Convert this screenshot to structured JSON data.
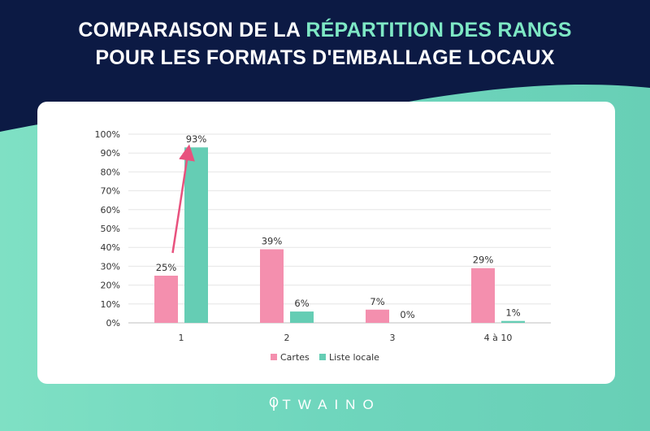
{
  "header": {
    "title_line1_pre": "COMPARAISON DE LA ",
    "title_line1_highlight": "RÉPARTITION DES RANGS",
    "title_line2": "POUR LES FORMATS D'EMBALLAGE LOCAUX"
  },
  "colors": {
    "header_bg": "#0c1a44",
    "highlight": "#7ee8c5",
    "cartes": "#f48fae",
    "liste_locale": "#65cdb4",
    "arrow": "#e8527e"
  },
  "chart_data": {
    "type": "bar",
    "categories": [
      "1",
      "2",
      "3",
      "4 à 10"
    ],
    "series": [
      {
        "name": "Cartes",
        "values": [
          25,
          39,
          7,
          29
        ],
        "labels": [
          "25%",
          "39%",
          "7%",
          "29%"
        ]
      },
      {
        "name": "Liste locale",
        "values": [
          93,
          6,
          0,
          1
        ],
        "labels": [
          "93%",
          "6%",
          "0%",
          "1%"
        ]
      }
    ],
    "y_ticks": [
      "0%",
      "10%",
      "20%",
      "30%",
      "40%",
      "50%",
      "60%",
      "70%",
      "80%",
      "90%",
      "100%"
    ],
    "ylim": [
      0,
      100
    ],
    "grid": true,
    "legend_position": "bottom-center",
    "annotation": "arrow from Cartes rank 1 to Liste locale rank 1"
  },
  "footer": {
    "logo_text": "TWAINO",
    "logo_icon": "leaf-icon"
  }
}
